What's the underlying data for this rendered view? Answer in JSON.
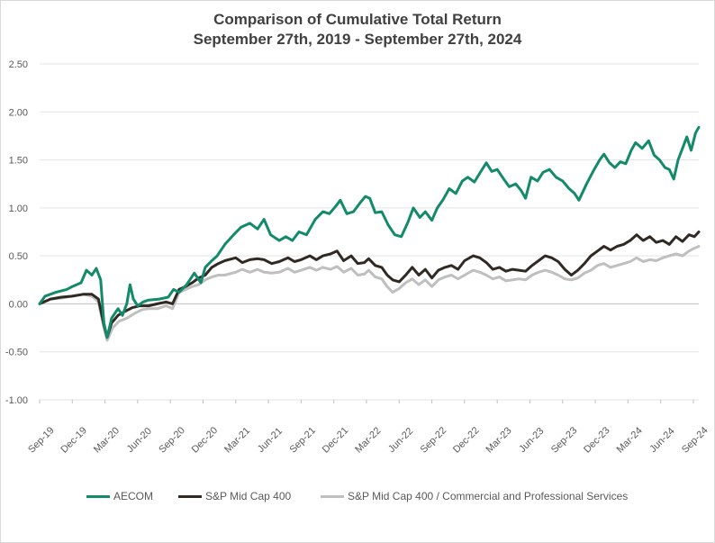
{
  "chart_data": {
    "type": "line",
    "title": "Comparison of Cumulative Total Return",
    "subtitle": "September 27th, 2019 - September 27th, 2024",
    "xlabel": "",
    "ylabel": "",
    "ylim": [
      -1.0,
      2.5
    ],
    "yticks": [
      "2.50",
      "2.00",
      "1.50",
      "1.00",
      "0.50",
      "0.00",
      "-0.50",
      "-1.00"
    ],
    "ytick_values": [
      2.5,
      2.0,
      1.5,
      1.0,
      0.5,
      0.0,
      -0.5,
      -1.0
    ],
    "xticks": [
      "Sep-19",
      "Dec-19",
      "Mar-20",
      "Jun-20",
      "Sep-20",
      "Dec-20",
      "Mar-21",
      "Jun-21",
      "Sep-21",
      "Dec-21",
      "Mar-22",
      "Jun-22",
      "Sep-22",
      "Dec-22",
      "Mar-23",
      "Jun-23",
      "Sep-23",
      "Dec-23",
      "Mar-24",
      "Jun-24",
      "Sep-24"
    ],
    "x_months": [
      0,
      3,
      6,
      9,
      12,
      15,
      18,
      21,
      24,
      27,
      30,
      33,
      36,
      39,
      42,
      45,
      48,
      51,
      54,
      57,
      60
    ],
    "grid": true,
    "legend_position": "bottom",
    "series": [
      {
        "name": "AECOM",
        "color": "#138a6a",
        "points": [
          [
            0,
            0.0
          ],
          [
            0.5,
            0.08
          ],
          [
            1.5,
            0.12
          ],
          [
            2.5,
            0.15
          ],
          [
            3,
            0.18
          ],
          [
            3.8,
            0.22
          ],
          [
            4.3,
            0.35
          ],
          [
            4.8,
            0.3
          ],
          [
            5.2,
            0.37
          ],
          [
            5.6,
            0.25
          ],
          [
            5.9,
            -0.2
          ],
          [
            6.2,
            -0.35
          ],
          [
            6.6,
            -0.15
          ],
          [
            7.2,
            -0.05
          ],
          [
            7.6,
            -0.12
          ],
          [
            8,
            0.0
          ],
          [
            8.3,
            0.2
          ],
          [
            8.6,
            0.05
          ],
          [
            9,
            -0.02
          ],
          [
            9.5,
            0.02
          ],
          [
            10,
            0.04
          ],
          [
            11,
            0.05
          ],
          [
            11.8,
            0.07
          ],
          [
            12.3,
            0.15
          ],
          [
            12.8,
            0.12
          ],
          [
            13.5,
            0.2
          ],
          [
            14.2,
            0.32
          ],
          [
            14.8,
            0.22
          ],
          [
            15.2,
            0.38
          ],
          [
            15.8,
            0.45
          ],
          [
            16.3,
            0.5
          ],
          [
            17,
            0.62
          ],
          [
            17.8,
            0.72
          ],
          [
            18.5,
            0.8
          ],
          [
            19.3,
            0.84
          ],
          [
            20,
            0.78
          ],
          [
            20.6,
            0.88
          ],
          [
            21.2,
            0.72
          ],
          [
            22,
            0.66
          ],
          [
            22.6,
            0.7
          ],
          [
            23.2,
            0.66
          ],
          [
            23.8,
            0.75
          ],
          [
            24.5,
            0.72
          ],
          [
            25.3,
            0.88
          ],
          [
            26,
            0.96
          ],
          [
            26.6,
            0.94
          ],
          [
            27.2,
            1.02
          ],
          [
            27.6,
            1.08
          ],
          [
            28.2,
            0.94
          ],
          [
            28.8,
            0.96
          ],
          [
            29.4,
            1.05
          ],
          [
            29.9,
            1.12
          ],
          [
            30.3,
            1.1
          ],
          [
            30.8,
            0.95
          ],
          [
            31.4,
            0.96
          ],
          [
            32,
            0.82
          ],
          [
            32.6,
            0.72
          ],
          [
            33.2,
            0.7
          ],
          [
            33.8,
            0.85
          ],
          [
            34.3,
            1.0
          ],
          [
            34.9,
            0.9
          ],
          [
            35.4,
            0.96
          ],
          [
            36,
            0.87
          ],
          [
            36.5,
            1.0
          ],
          [
            37,
            1.08
          ],
          [
            37.6,
            1.2
          ],
          [
            38.2,
            1.15
          ],
          [
            38.8,
            1.28
          ],
          [
            39.3,
            1.32
          ],
          [
            39.9,
            1.27
          ],
          [
            40.5,
            1.38
          ],
          [
            41,
            1.47
          ],
          [
            41.5,
            1.38
          ],
          [
            42,
            1.4
          ],
          [
            42.6,
            1.3
          ],
          [
            43.1,
            1.22
          ],
          [
            43.7,
            1.25
          ],
          [
            44.2,
            1.18
          ],
          [
            44.6,
            1.1
          ],
          [
            45.1,
            1.32
          ],
          [
            45.7,
            1.28
          ],
          [
            46.2,
            1.37
          ],
          [
            46.8,
            1.4
          ],
          [
            47.4,
            1.32
          ],
          [
            48,
            1.28
          ],
          [
            48.6,
            1.2
          ],
          [
            49.1,
            1.15
          ],
          [
            49.5,
            1.08
          ],
          [
            50.2,
            1.25
          ],
          [
            50.8,
            1.38
          ],
          [
            51.4,
            1.5
          ],
          [
            51.8,
            1.56
          ],
          [
            52.3,
            1.47
          ],
          [
            52.8,
            1.42
          ],
          [
            53.3,
            1.48
          ],
          [
            53.8,
            1.46
          ],
          [
            54.3,
            1.6
          ],
          [
            54.7,
            1.68
          ],
          [
            55.3,
            1.62
          ],
          [
            55.9,
            1.7
          ],
          [
            56.4,
            1.55
          ],
          [
            56.9,
            1.5
          ],
          [
            57.4,
            1.42
          ],
          [
            57.8,
            1.4
          ],
          [
            58.2,
            1.3
          ],
          [
            58.6,
            1.5
          ],
          [
            59,
            1.62
          ],
          [
            59.4,
            1.74
          ],
          [
            59.8,
            1.6
          ],
          [
            60.2,
            1.78
          ],
          [
            60.5,
            1.84
          ]
        ]
      },
      {
        "name": "S&P Mid Cap 400",
        "color": "#302a22",
        "points": [
          [
            0,
            0.0
          ],
          [
            1,
            0.05
          ],
          [
            2,
            0.07
          ],
          [
            3,
            0.08
          ],
          [
            4,
            0.1
          ],
          [
            4.8,
            0.1
          ],
          [
            5.4,
            0.05
          ],
          [
            5.9,
            -0.22
          ],
          [
            6.2,
            -0.35
          ],
          [
            6.6,
            -0.2
          ],
          [
            7.2,
            -0.12
          ],
          [
            7.8,
            -0.08
          ],
          [
            8.5,
            -0.04
          ],
          [
            9.2,
            -0.02
          ],
          [
            10,
            -0.02
          ],
          [
            10.8,
            0.0
          ],
          [
            11.6,
            0.02
          ],
          [
            12.2,
            0.0
          ],
          [
            12.8,
            0.15
          ],
          [
            13.4,
            0.18
          ],
          [
            14,
            0.22
          ],
          [
            14.6,
            0.27
          ],
          [
            15.2,
            0.3
          ],
          [
            15.8,
            0.38
          ],
          [
            16.4,
            0.42
          ],
          [
            17,
            0.45
          ],
          [
            18,
            0.48
          ],
          [
            18.6,
            0.43
          ],
          [
            19.3,
            0.46
          ],
          [
            20,
            0.47
          ],
          [
            20.6,
            0.46
          ],
          [
            21.3,
            0.42
          ],
          [
            22,
            0.44
          ],
          [
            22.8,
            0.48
          ],
          [
            23.4,
            0.44
          ],
          [
            24,
            0.46
          ],
          [
            24.8,
            0.5
          ],
          [
            25.4,
            0.46
          ],
          [
            26,
            0.5
          ],
          [
            26.7,
            0.52
          ],
          [
            27.3,
            0.55
          ],
          [
            27.9,
            0.45
          ],
          [
            28.6,
            0.5
          ],
          [
            29.2,
            0.42
          ],
          [
            29.8,
            0.43
          ],
          [
            30.2,
            0.47
          ],
          [
            30.8,
            0.4
          ],
          [
            31.4,
            0.38
          ],
          [
            31.9,
            0.3
          ],
          [
            32.4,
            0.25
          ],
          [
            33,
            0.23
          ],
          [
            33.6,
            0.3
          ],
          [
            34.2,
            0.38
          ],
          [
            34.8,
            0.3
          ],
          [
            35.4,
            0.36
          ],
          [
            36,
            0.27
          ],
          [
            36.6,
            0.35
          ],
          [
            37.2,
            0.38
          ],
          [
            37.8,
            0.4
          ],
          [
            38.4,
            0.36
          ],
          [
            39,
            0.45
          ],
          [
            39.8,
            0.5
          ],
          [
            40.4,
            0.48
          ],
          [
            41,
            0.43
          ],
          [
            41.6,
            0.36
          ],
          [
            42.2,
            0.38
          ],
          [
            42.8,
            0.34
          ],
          [
            43.4,
            0.36
          ],
          [
            44,
            0.35
          ],
          [
            44.6,
            0.34
          ],
          [
            45.2,
            0.4
          ],
          [
            45.8,
            0.45
          ],
          [
            46.4,
            0.5
          ],
          [
            47,
            0.48
          ],
          [
            47.6,
            0.44
          ],
          [
            48.2,
            0.36
          ],
          [
            48.8,
            0.3
          ],
          [
            49.4,
            0.35
          ],
          [
            50,
            0.42
          ],
          [
            50.6,
            0.5
          ],
          [
            51.2,
            0.55
          ],
          [
            51.8,
            0.6
          ],
          [
            52.4,
            0.56
          ],
          [
            53,
            0.6
          ],
          [
            53.6,
            0.62
          ],
          [
            54.2,
            0.66
          ],
          [
            54.8,
            0.72
          ],
          [
            55.4,
            0.66
          ],
          [
            56,
            0.7
          ],
          [
            56.6,
            0.64
          ],
          [
            57.2,
            0.66
          ],
          [
            57.8,
            0.62
          ],
          [
            58.4,
            0.7
          ],
          [
            59,
            0.65
          ],
          [
            59.6,
            0.72
          ],
          [
            60.1,
            0.7
          ],
          [
            60.5,
            0.75
          ]
        ]
      },
      {
        "name": "S&P Mid Cap 400 / Commercial and Professional Services",
        "color": "#bfbfbf",
        "points": [
          [
            0,
            0.0
          ],
          [
            1,
            0.05
          ],
          [
            2,
            0.06
          ],
          [
            3,
            0.08
          ],
          [
            4,
            0.1
          ],
          [
            4.8,
            0.08
          ],
          [
            5.4,
            0.02
          ],
          [
            5.9,
            -0.25
          ],
          [
            6.2,
            -0.38
          ],
          [
            6.7,
            -0.25
          ],
          [
            7.3,
            -0.18
          ],
          [
            8,
            -0.15
          ],
          [
            8.7,
            -0.1
          ],
          [
            9.4,
            -0.06
          ],
          [
            10,
            -0.05
          ],
          [
            10.8,
            -0.05
          ],
          [
            11.6,
            -0.02
          ],
          [
            12.2,
            -0.05
          ],
          [
            12.8,
            0.12
          ],
          [
            13.4,
            0.15
          ],
          [
            14,
            0.18
          ],
          [
            14.6,
            0.2
          ],
          [
            15.2,
            0.25
          ],
          [
            15.8,
            0.28
          ],
          [
            16.4,
            0.3
          ],
          [
            17,
            0.3
          ],
          [
            18,
            0.33
          ],
          [
            18.6,
            0.36
          ],
          [
            19.3,
            0.33
          ],
          [
            20,
            0.36
          ],
          [
            20.6,
            0.33
          ],
          [
            21.3,
            0.32
          ],
          [
            22,
            0.33
          ],
          [
            22.8,
            0.37
          ],
          [
            23.4,
            0.33
          ],
          [
            24,
            0.35
          ],
          [
            24.8,
            0.38
          ],
          [
            25.4,
            0.35
          ],
          [
            26,
            0.38
          ],
          [
            26.7,
            0.36
          ],
          [
            27.3,
            0.39
          ],
          [
            27.9,
            0.33
          ],
          [
            28.6,
            0.37
          ],
          [
            29.2,
            0.3
          ],
          [
            29.8,
            0.31
          ],
          [
            30.2,
            0.35
          ],
          [
            30.8,
            0.28
          ],
          [
            31.4,
            0.26
          ],
          [
            31.9,
            0.18
          ],
          [
            32.4,
            0.12
          ],
          [
            33,
            0.16
          ],
          [
            33.6,
            0.22
          ],
          [
            34.2,
            0.26
          ],
          [
            34.8,
            0.2
          ],
          [
            35.4,
            0.25
          ],
          [
            36,
            0.18
          ],
          [
            36.6,
            0.25
          ],
          [
            37.2,
            0.28
          ],
          [
            37.8,
            0.3
          ],
          [
            38.4,
            0.26
          ],
          [
            39,
            0.3
          ],
          [
            39.8,
            0.35
          ],
          [
            40.4,
            0.33
          ],
          [
            41,
            0.3
          ],
          [
            41.6,
            0.26
          ],
          [
            42.2,
            0.28
          ],
          [
            42.8,
            0.24
          ],
          [
            43.4,
            0.25
          ],
          [
            44,
            0.26
          ],
          [
            44.6,
            0.25
          ],
          [
            45.2,
            0.3
          ],
          [
            45.8,
            0.33
          ],
          [
            46.4,
            0.35
          ],
          [
            47,
            0.33
          ],
          [
            47.6,
            0.3
          ],
          [
            48.2,
            0.26
          ],
          [
            48.8,
            0.25
          ],
          [
            49.4,
            0.27
          ],
          [
            50,
            0.32
          ],
          [
            50.6,
            0.35
          ],
          [
            51.2,
            0.4
          ],
          [
            51.8,
            0.42
          ],
          [
            52.4,
            0.38
          ],
          [
            53,
            0.4
          ],
          [
            53.6,
            0.42
          ],
          [
            54.2,
            0.44
          ],
          [
            54.8,
            0.48
          ],
          [
            55.4,
            0.44
          ],
          [
            56,
            0.46
          ],
          [
            56.6,
            0.45
          ],
          [
            57.2,
            0.48
          ],
          [
            57.8,
            0.5
          ],
          [
            58.4,
            0.52
          ],
          [
            59,
            0.5
          ],
          [
            59.6,
            0.55
          ],
          [
            60.1,
            0.58
          ],
          [
            60.5,
            0.6
          ]
        ]
      }
    ]
  }
}
